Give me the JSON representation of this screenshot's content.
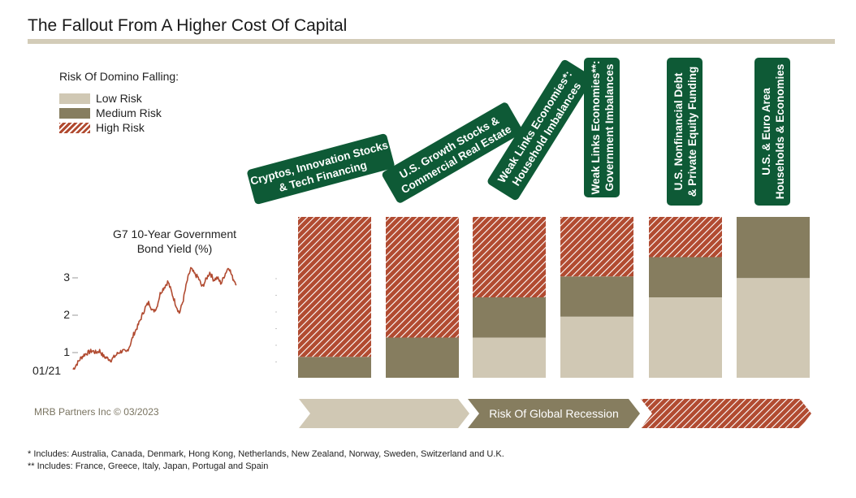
{
  "title": "The Fallout From A Higher Cost Of Capital",
  "colors": {
    "low": "#d0c8b4",
    "medium": "#867d5f",
    "high": "#b14b31",
    "badge": "#0e5a36",
    "line": "#b14b31",
    "rule": "#d3ccb8"
  },
  "legend": {
    "title": "Risk Of Domino Falling:",
    "items": [
      {
        "label": "Low Risk",
        "key": "low"
      },
      {
        "label": "Medium Risk",
        "key": "medium"
      },
      {
        "label": "High Risk",
        "key": "high"
      }
    ]
  },
  "mini_chart": {
    "title_line1": "G7 10-Year Government",
    "title_line2": "Bond Yield (%)",
    "x_start_label": "01/21",
    "yticks": [
      "1",
      "2",
      "3"
    ]
  },
  "credit": "MRB Partners Inc © 03/2023",
  "arrows": [
    {
      "label": "",
      "key": "low"
    },
    {
      "label": "Risk Of Global Recession",
      "key": "medium"
    },
    {
      "label": "",
      "key": "high"
    }
  ],
  "footnotes": [
    "*   Includes: Australia, Canada, Denmark, Hong Kong, Netherlands, New Zealand, Norway, Sweden, Switzerland and U.K.",
    "** Includes: France, Greece, Italy, Japan, Portugal and Spain"
  ],
  "chart_data": [
    {
      "type": "bar",
      "stacked": true,
      "categories": [
        "Cryptos, Innovation Stocks & Tech Financing",
        "U.S. Growth Stocks & Commercial Real Estate",
        "Weak Links Economies*: Household Imbalances",
        "Weak Links Economies**: Government Imbalances",
        "U.S. Nonfinancial Debt & Private Equity Funding",
        "U.S. & Euro Area Households & Economies"
      ],
      "category_lines": [
        [
          "Cryptos, Innovation Stocks",
          "& Tech Financing"
        ],
        [
          "U.S. Growth Stocks &",
          "Commercial Real Estate"
        ],
        [
          "Weak Links Economies*:",
          "Household Imbalances"
        ],
        [
          "Weak Links Economies**:",
          "Government Imbalances"
        ],
        [
          "U.S. Nonfinancial Debt",
          "& Private Equity Funding"
        ],
        [
          "U.S. & Euro Area",
          "Households & Economies"
        ]
      ],
      "series": [
        {
          "name": "Low Risk",
          "key": "low",
          "values": [
            0,
            0,
            25,
            38,
            50,
            62
          ]
        },
        {
          "name": "Medium Risk",
          "key": "medium",
          "values": [
            13,
            25,
            25,
            25,
            25,
            38
          ]
        },
        {
          "name": "High Risk",
          "key": "high",
          "values": [
            87,
            75,
            50,
            37,
            25,
            0
          ]
        }
      ],
      "ylim": [
        0,
        100
      ]
    },
    {
      "type": "line",
      "title": "G7 10-Year Government Bond Yield (%)",
      "x_start": "01/21",
      "ylim": [
        0.45,
        3.5
      ],
      "yticks": [
        1,
        2,
        3
      ],
      "values": [
        0.55,
        0.7,
        0.85,
        0.95,
        1.0,
        1.05,
        1.0,
        1.05,
        0.9,
        0.85,
        0.8,
        0.9,
        1.0,
        1.05,
        1.0,
        1.2,
        1.5,
        1.7,
        1.95,
        2.2,
        2.35,
        2.1,
        2.2,
        2.6,
        2.75,
        2.9,
        2.6,
        2.3,
        2.05,
        2.4,
        2.9,
        3.25,
        3.1,
        3.0,
        2.75,
        2.95,
        3.15,
        2.95,
        3.0,
        2.85,
        3.1,
        3.3,
        3.0,
        2.85
      ]
    }
  ]
}
